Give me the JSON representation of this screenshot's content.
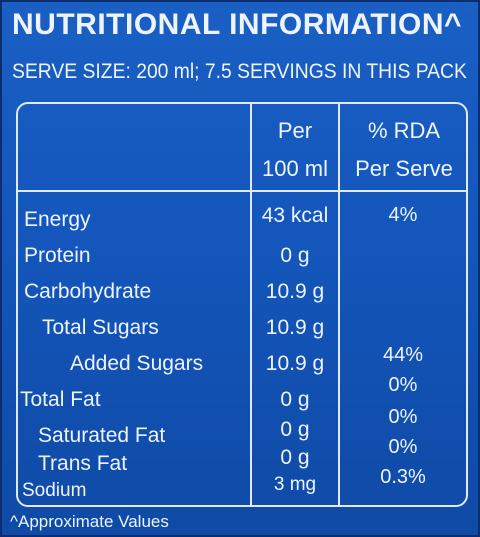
{
  "title": "NUTRITIONAL INFORMATION^",
  "serve_size": "SERVE SIZE: 200 ml; 7.5 SERVINGS IN THIS PACK",
  "header": {
    "per_line1": "Per",
    "per_line2": "100 ml",
    "rda_line1": "% RDA",
    "rda_line2": "Per Serve"
  },
  "rows": [
    {
      "name": "Energy",
      "per100": "43 kcal",
      "rda": "4%"
    },
    {
      "name": "Protein",
      "per100": "0 g",
      "rda": ""
    },
    {
      "name": "Carbohydrate",
      "per100": "10.9 g",
      "rda": ""
    },
    {
      "name": "Total Sugars",
      "per100": "10.9 g",
      "rda": ""
    },
    {
      "name": "Added Sugars",
      "per100": "10.9 g",
      "rda": "44%"
    },
    {
      "name": "Total Fat",
      "per100": "0 g",
      "rda": "0%"
    },
    {
      "name": "Saturated Fat",
      "per100": "0 g",
      "rda": "0%"
    },
    {
      "name": "Trans Fat",
      "per100": "0 g",
      "rda": "0%"
    },
    {
      "name": "Sodium",
      "per100": "3 mg",
      "rda": "0.3%"
    }
  ],
  "footnote": "^Approximate Values"
}
